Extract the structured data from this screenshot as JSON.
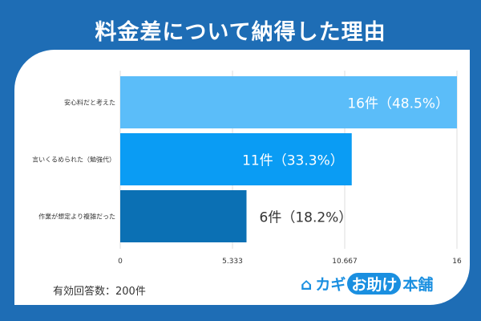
{
  "title": "料金差について納得した理由",
  "note": "有効回答数：200件",
  "logo": {
    "pre": "カギ",
    "bubble": "お助け",
    "post": "本舗"
  },
  "colors": [
    "#5bbdf9",
    "#0a9cf4",
    "#0b70b4"
  ],
  "chart_data": {
    "type": "bar",
    "orientation": "horizontal",
    "categories": [
      "安心料だと考えた",
      "言いくるめられた（勉強代）",
      "作業が想定より複雑だった"
    ],
    "values": [
      16,
      11,
      6
    ],
    "labels": [
      "16件（48.5%）",
      "11件（33.3%）",
      "6件（18.2%）"
    ],
    "xlim": [
      0,
      16
    ],
    "ticks": [
      "0",
      "5.333",
      "10.667",
      "16"
    ],
    "grid": true
  }
}
